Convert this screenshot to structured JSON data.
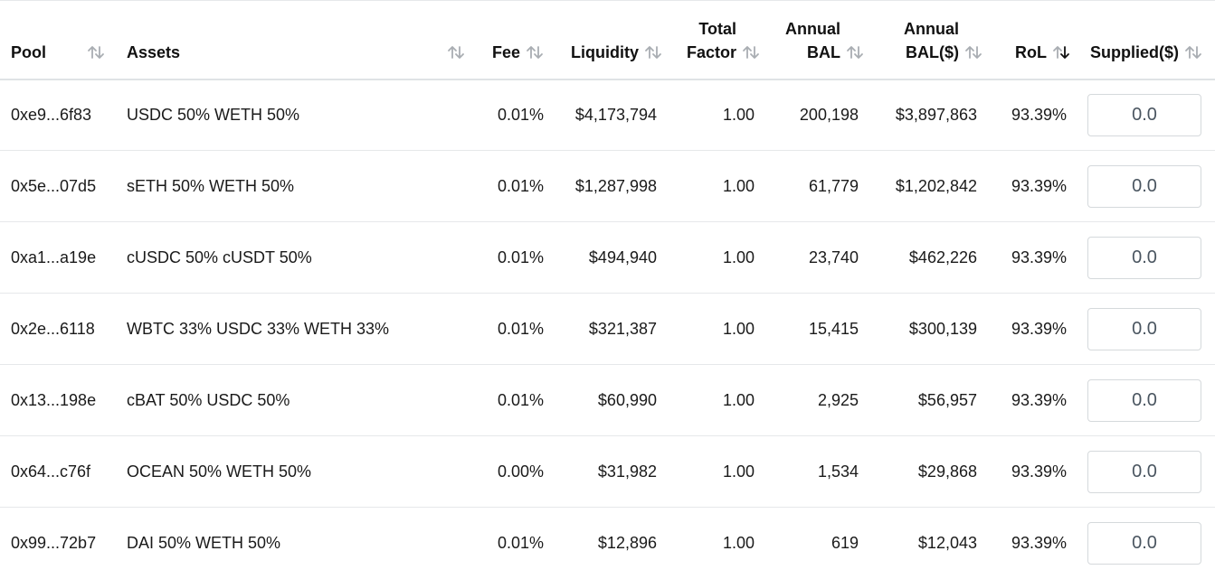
{
  "columns": {
    "pool": "Pool",
    "assets": "Assets",
    "fee": "Fee",
    "liquidity": "Liquidity",
    "total_factor_line1": "Total",
    "total_factor_line2": "Factor",
    "annual_bal_line1": "Annual",
    "annual_bal_line2": "BAL",
    "annual_bal_usd_line1": "Annual",
    "annual_bal_usd_line2": "BAL($)",
    "rol": "RoL",
    "supplied": "Supplied($)"
  },
  "sort": {
    "active_column": "RoL",
    "active_direction": "descending",
    "active_color": "#111111",
    "inactive_color": "#a9adb2"
  },
  "rows": [
    {
      "pool": "0xe9...6f83",
      "assets": "USDC 50% WETH 50%",
      "fee": "0.01%",
      "liquidity": "$4,173,794",
      "total_factor": "1.00",
      "annual_bal": "200,198",
      "annual_bal_usd": "$3,897,863",
      "rol": "93.39%",
      "supplied": "0.0"
    },
    {
      "pool": "0x5e...07d5",
      "assets": "sETH 50% WETH 50%",
      "fee": "0.01%",
      "liquidity": "$1,287,998",
      "total_factor": "1.00",
      "annual_bal": "61,779",
      "annual_bal_usd": "$1,202,842",
      "rol": "93.39%",
      "supplied": "0.0"
    },
    {
      "pool": "0xa1...a19e",
      "assets": "cUSDC 50% cUSDT 50%",
      "fee": "0.01%",
      "liquidity": "$494,940",
      "total_factor": "1.00",
      "annual_bal": "23,740",
      "annual_bal_usd": "$462,226",
      "rol": "93.39%",
      "supplied": "0.0"
    },
    {
      "pool": "0x2e...6118",
      "assets": "WBTC 33% USDC 33% WETH 33%",
      "fee": "0.01%",
      "liquidity": "$321,387",
      "total_factor": "1.00",
      "annual_bal": "15,415",
      "annual_bal_usd": "$300,139",
      "rol": "93.39%",
      "supplied": "0.0"
    },
    {
      "pool": "0x13...198e",
      "assets": "cBAT 50% USDC 50%",
      "fee": "0.01%",
      "liquidity": "$60,990",
      "total_factor": "1.00",
      "annual_bal": "2,925",
      "annual_bal_usd": "$56,957",
      "rol": "93.39%",
      "supplied": "0.0"
    },
    {
      "pool": "0x64...c76f",
      "assets": "OCEAN 50% WETH 50%",
      "fee": "0.00%",
      "liquidity": "$31,982",
      "total_factor": "1.00",
      "annual_bal": "1,534",
      "annual_bal_usd": "$29,868",
      "rol": "93.39%",
      "supplied": "0.0"
    },
    {
      "pool": "0x99...72b7",
      "assets": "DAI 50% WETH 50%",
      "fee": "0.01%",
      "liquidity": "$12,896",
      "total_factor": "1.00",
      "annual_bal": "619",
      "annual_bal_usd": "$12,043",
      "rol": "93.39%",
      "supplied": "0.0"
    }
  ]
}
